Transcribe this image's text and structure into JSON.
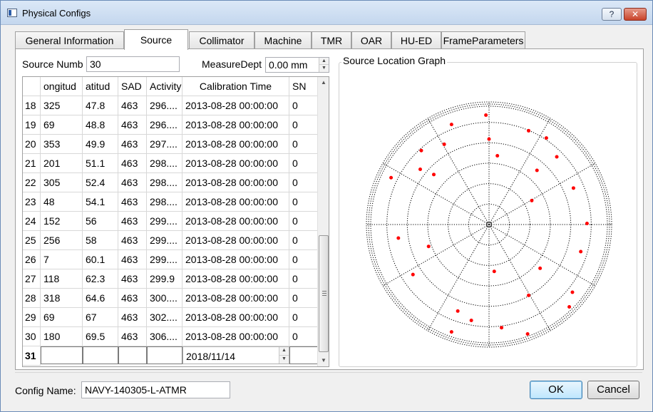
{
  "window": {
    "title": "Physical Configs",
    "help_label": "?",
    "close_label": "✕"
  },
  "tabs": [
    {
      "label": "General Information",
      "left": 0,
      "width": 152
    },
    {
      "label": "Source",
      "active": true
    },
    {
      "label": "Collimator"
    },
    {
      "label": "Machine"
    },
    {
      "label": "TMR"
    },
    {
      "label": "OAR"
    },
    {
      "label": "HU-ED"
    },
    {
      "label": "FrameParameters"
    }
  ],
  "source": {
    "number_label": "Source Numb",
    "number_value": "30",
    "measure_label": "MeasureDept",
    "measure_value": "0.00 mm"
  },
  "table": {
    "headers": [
      "ongitud",
      "atitud",
      "SAD",
      "Activity",
      "Calibration Time",
      "SN"
    ],
    "rows": [
      {
        "idx": "18",
        "cells": [
          "325",
          "47.8",
          "463",
          "296....",
          "2013-08-28 00:00:00",
          "0"
        ]
      },
      {
        "idx": "19",
        "cells": [
          "69",
          "48.8",
          "463",
          "296....",
          "2013-08-28 00:00:00",
          "0"
        ]
      },
      {
        "idx": "20",
        "cells": [
          "353",
          "49.9",
          "463",
          "297....",
          "2013-08-28 00:00:00",
          "0"
        ]
      },
      {
        "idx": "21",
        "cells": [
          "201",
          "51.1",
          "463",
          "298....",
          "2013-08-28 00:00:00",
          "0"
        ]
      },
      {
        "idx": "22",
        "cells": [
          "305",
          "52.4",
          "463",
          "298....",
          "2013-08-28 00:00:00",
          "0"
        ]
      },
      {
        "idx": "23",
        "cells": [
          "48",
          "54.1",
          "463",
          "298....",
          "2013-08-28 00:00:00",
          "0"
        ]
      },
      {
        "idx": "24",
        "cells": [
          "152",
          "56",
          "463",
          "299....",
          "2013-08-28 00:00:00",
          "0"
        ]
      },
      {
        "idx": "25",
        "cells": [
          "256",
          "58",
          "463",
          "299....",
          "2013-08-28 00:00:00",
          "0"
        ]
      },
      {
        "idx": "26",
        "cells": [
          "7",
          "60.1",
          "463",
          "299....",
          "2013-08-28 00:00:00",
          "0"
        ]
      },
      {
        "idx": "27",
        "cells": [
          "118",
          "62.3",
          "463",
          "299.9",
          "2013-08-28 00:00:00",
          "0"
        ]
      },
      {
        "idx": "28",
        "cells": [
          "318",
          "64.6",
          "463",
          "300....",
          "2013-08-28 00:00:00",
          "0"
        ]
      },
      {
        "idx": "29",
        "cells": [
          "69",
          "67",
          "463",
          "302....",
          "2013-08-28 00:00:00",
          "0"
        ]
      },
      {
        "idx": "30",
        "cells": [
          "180",
          "69.5",
          "463",
          "306....",
          "2013-08-28 00:00:00",
          "0"
        ]
      }
    ],
    "new_row": {
      "idx": "31",
      "date": "2018/11/14"
    }
  },
  "graph": {
    "title": "Source Location Graph",
    "rings": 6,
    "spokes": 12,
    "point_color": "#ff0000",
    "points": [
      [
        -0.03,
        -0.87
      ],
      [
        0.38,
        -0.72
      ],
      [
        -0.36,
        -0.78
      ],
      [
        0.0,
        -0.64
      ],
      [
        0.55,
        -0.65
      ],
      [
        -0.65,
        -0.53
      ],
      [
        -0.43,
        -0.59
      ],
      [
        0.08,
        -0.48
      ],
      [
        0.65,
        -0.47
      ],
      [
        -0.66,
        -0.35
      ],
      [
        0.46,
        -0.34
      ],
      [
        -0.53,
        -0.3
      ],
      [
        -0.94,
        -0.27
      ],
      [
        0.81,
        -0.17
      ],
      [
        0.41,
        -0.05
      ],
      [
        0.94,
        0.17
      ],
      [
        -0.87,
        0.31
      ],
      [
        -0.58,
        0.39
      ],
      [
        0.88,
        0.44
      ],
      [
        0.49,
        0.6
      ],
      [
        0.05,
        0.63
      ],
      [
        -0.73,
        0.66
      ],
      [
        0.8,
        0.83
      ],
      [
        0.38,
        0.86
      ],
      [
        -0.3,
        1.01
      ],
      [
        -0.17,
        1.1
      ],
      [
        0.77,
        0.97
      ],
      [
        0.12,
        1.17
      ],
      [
        -0.36,
        1.21
      ],
      [
        0.37,
        1.23
      ]
    ]
  },
  "footer": {
    "config_label": "Config Name:",
    "config_value": "NAVY-140305-L-ATMR",
    "ok_label": "OK",
    "cancel_label": "Cancel"
  }
}
